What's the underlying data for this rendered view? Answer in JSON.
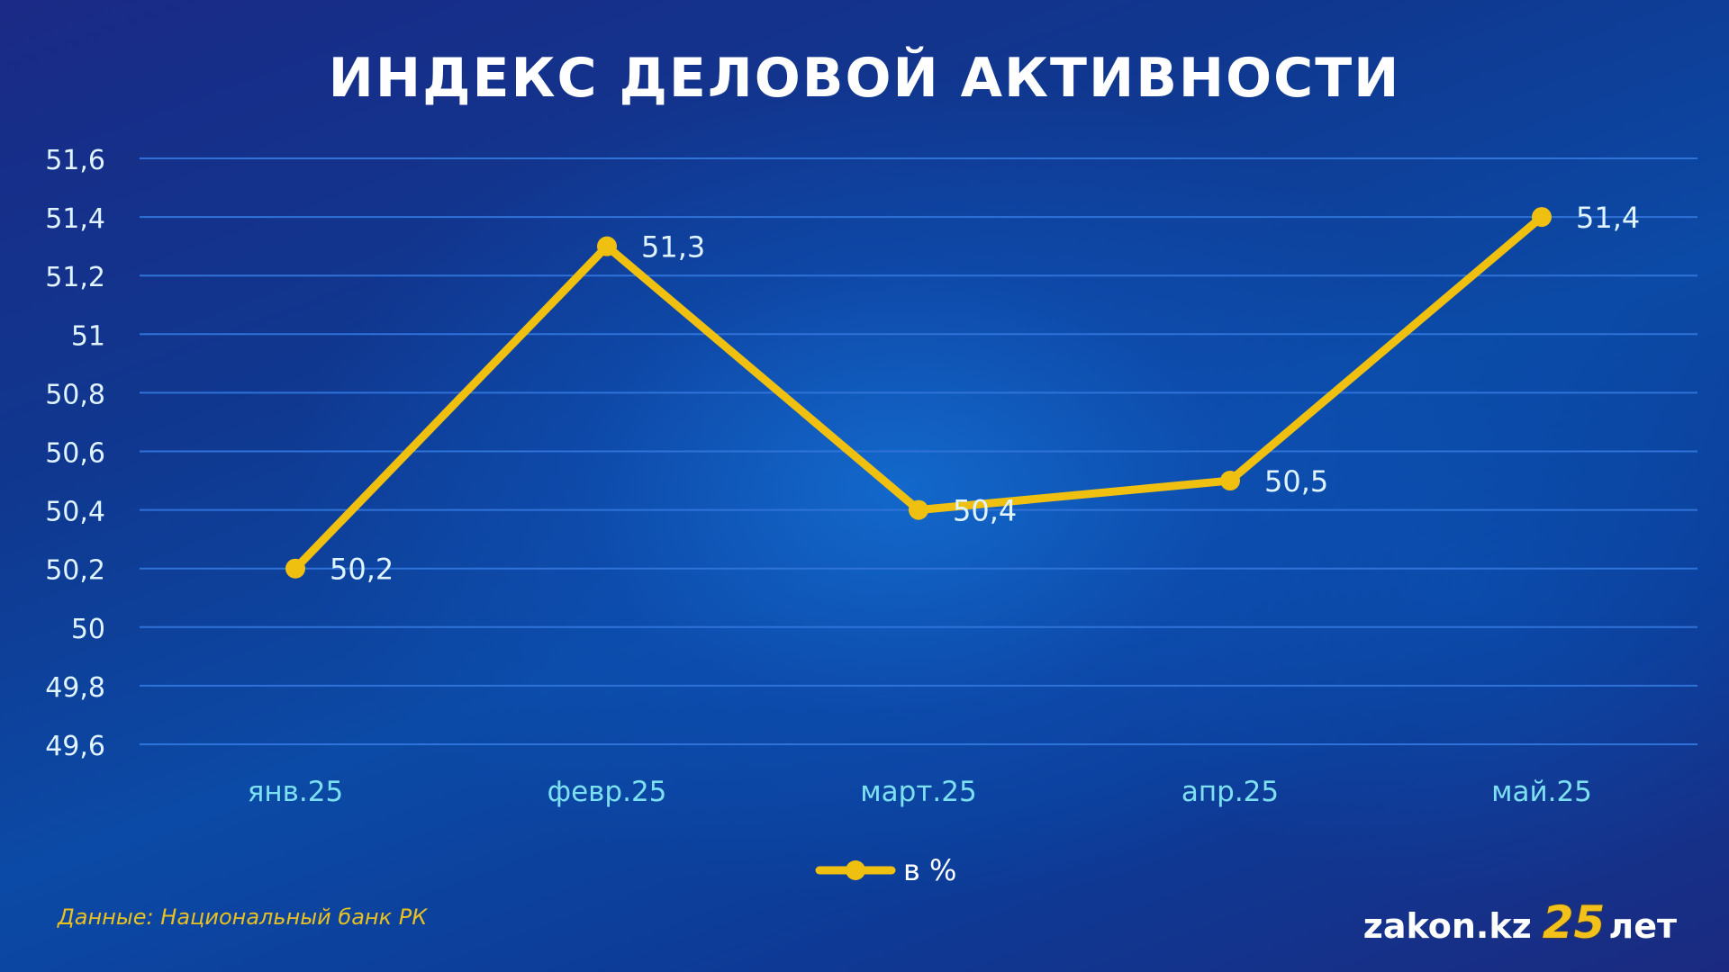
{
  "chart_data": {
    "type": "line",
    "title": "ИНДЕКС ДЕЛОВОЙ АКТИВНОСТИ",
    "categories": [
      "янв.25",
      "февр.25",
      "март.25",
      "апр.25",
      "май.25"
    ],
    "series": [
      {
        "name": "в %",
        "values": [
          50.2,
          51.3,
          50.4,
          50.5,
          51.4
        ],
        "color": "#f0c010"
      }
    ],
    "data_labels": [
      "50,2",
      "51,3",
      "50,4",
      "50,5",
      "51,4"
    ],
    "y_ticks": [
      51.6,
      51.4,
      51.2,
      51,
      50.8,
      50.6,
      50.4,
      50.2,
      50,
      49.8,
      49.6
    ],
    "y_tick_labels": [
      "51,6",
      "51,4",
      "51,2",
      "51",
      "50,8",
      "50,6",
      "50,4",
      "50,2",
      "50",
      "49,8",
      "49,6"
    ],
    "ylim": [
      49.6,
      51.6
    ],
    "grid": true,
    "legend": "bottom-center",
    "colors": {
      "line": "#f0c010",
      "grid": "#2f72d8",
      "tick_text": "#dff4ff",
      "category_text": "#7de0f0"
    }
  },
  "footer": {
    "source": "Данные: Национальный банк РК",
    "brand": "zakon.kz",
    "anniversary_number": "25",
    "anniversary_word": "лет"
  }
}
